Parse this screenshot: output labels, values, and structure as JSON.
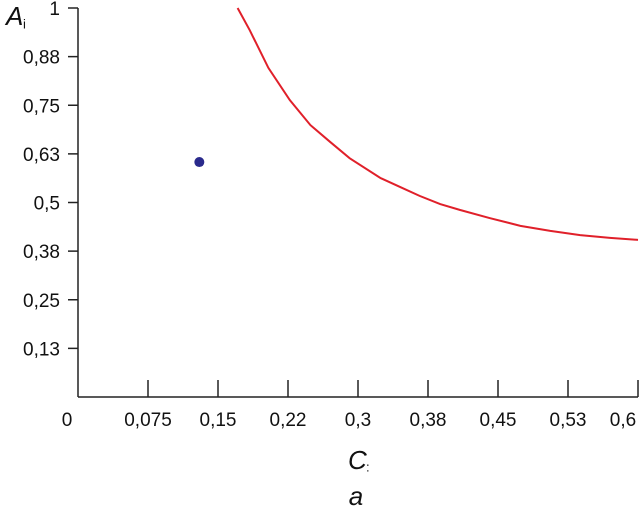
{
  "chart_data": {
    "type": "line",
    "xlabel": "C",
    "xlabel_sub": ":",
    "ylabel": "A",
    "ylabel_sub": "i",
    "caption": "a",
    "xlim": [
      0,
      0.6
    ],
    "ylim": [
      0,
      1
    ],
    "xticks": [
      0,
      {
        "value": 0.075,
        "label": "0,075"
      },
      {
        "value": 0.15,
        "label": "0,15"
      },
      {
        "value": 0.225,
        "label": "0,22"
      },
      {
        "value": 0.3,
        "label": "0,3"
      },
      {
        "value": 0.375,
        "label": "0,38"
      },
      {
        "value": 0.45,
        "label": "0,45"
      },
      {
        "value": 0.525,
        "label": "0,53"
      },
      {
        "value": 0.6,
        "label": "0,6"
      }
    ],
    "yticks": [
      {
        "value": 0.125,
        "label": "0,13"
      },
      {
        "value": 0.25,
        "label": "0,25"
      },
      {
        "value": 0.375,
        "label": "0,38"
      },
      {
        "value": 0.5,
        "label": "0,5"
      },
      {
        "value": 0.625,
        "label": "0,63"
      },
      {
        "value": 0.75,
        "label": "0,75"
      },
      {
        "value": 0.875,
        "label": "0,88"
      },
      1
    ],
    "series": [
      {
        "color": "#e0202a",
        "x": [
          0.171,
          0.184,
          0.204,
          0.227,
          0.249,
          0.27,
          0.291,
          0.324,
          0.345,
          0.366,
          0.388,
          0.409,
          0.441,
          0.474,
          0.506,
          0.538,
          0.57,
          0.6
        ],
        "values": [
          1.0,
          0.943,
          0.846,
          0.763,
          0.699,
          0.656,
          0.614,
          0.563,
          0.54,
          0.517,
          0.496,
          0.481,
          0.46,
          0.44,
          0.427,
          0.416,
          0.409,
          0.404
        ]
      }
    ],
    "points": {
      "color": "#2a2a8c",
      "x": [
        0.13
      ],
      "values": [
        0.604
      ]
    }
  }
}
